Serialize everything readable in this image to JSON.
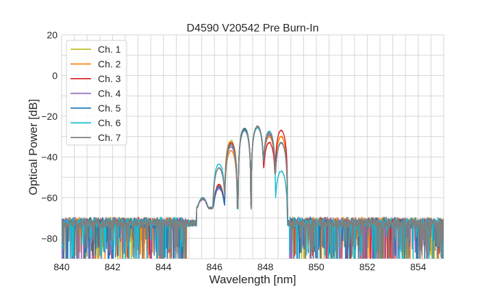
{
  "chart_data": {
    "type": "line",
    "title": "D4590 V20542 Pre Burn-In",
    "xlabel": "Wavelength [nm]",
    "ylabel": "Optical Power [dB]",
    "xlim": [
      840,
      855
    ],
    "ylim": [
      -90,
      20
    ],
    "xticks": [
      840,
      842,
      844,
      846,
      848,
      850,
      852,
      854
    ],
    "yticks": [
      20,
      0,
      -20,
      -40,
      -60,
      -80
    ],
    "grid": true,
    "legend_position": "top-left",
    "noise_floor_db": -72,
    "peaks_nm": [
      845.54,
      846.18,
      846.65,
      847.18,
      847.69,
      848.15,
      848.62
    ],
    "series": [
      {
        "name": "Ch. 1",
        "color": "#bcbd22",
        "peak_db": [
          -62,
          -54,
          -32,
          -26,
          -25,
          -29,
          -30
        ]
      },
      {
        "name": "Ch. 2",
        "color": "#ff7f0e",
        "peak_db": [
          -62,
          -55,
          -37,
          -26,
          -25,
          -30,
          -30
        ]
      },
      {
        "name": "Ch. 3",
        "color": "#d62728",
        "peak_db": [
          -62,
          -54,
          -33,
          -26.5,
          -25.5,
          -33,
          -27
        ]
      },
      {
        "name": "Ch. 4",
        "color": "#9467bd",
        "peak_db": [
          -63,
          -56,
          -35,
          -27,
          -25.5,
          -29,
          -33
        ]
      },
      {
        "name": "Ch. 5",
        "color": "#1f77b4",
        "peak_db": [
          -62,
          -55,
          -34,
          -26,
          -25,
          -28,
          -33
        ]
      },
      {
        "name": "Ch. 6",
        "color": "#17becf",
        "peak_db": [
          -61.5,
          -43.5,
          -34,
          -27,
          -25.5,
          -27.5,
          -47
        ]
      },
      {
        "name": "Ch. 7",
        "color": "#7f7f7f",
        "peak_db": [
          -62,
          -45.5,
          -34,
          -27,
          -25,
          -28,
          -33
        ]
      }
    ]
  }
}
